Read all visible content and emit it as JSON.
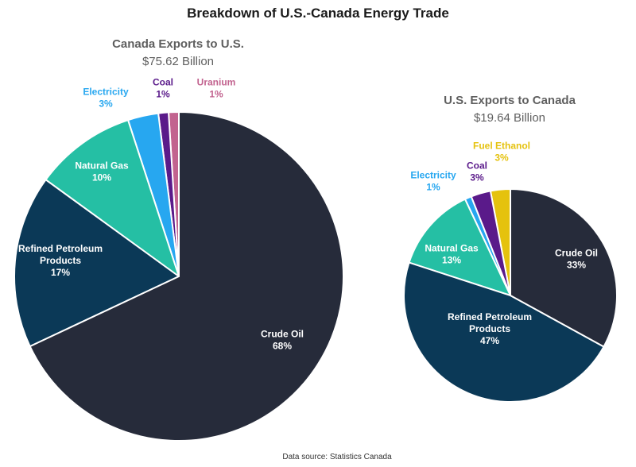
{
  "chart_data": [
    {
      "type": "pie",
      "title": "Breakdown of U.S.-Canada Energy Trade",
      "chart_title": "Canada Exports to U.S.",
      "subtitle": "$75.62 Billion",
      "slices": [
        {
          "name": "Crude Oil",
          "line1": "Crude Oil",
          "line2": "",
          "pct_label": "68%",
          "value": 68,
          "color": "#262b3a",
          "text_color": "#ffffff"
        },
        {
          "name": "Refined Petroleum Products",
          "line1": "Refined Petroleum",
          "line2": "Products",
          "pct_label": "17%",
          "value": 17,
          "color": "#0b3957",
          "text_color": "#ffffff"
        },
        {
          "name": "Natural Gas",
          "line1": "Natural Gas",
          "line2": "",
          "pct_label": "10%",
          "value": 10,
          "color": "#25bfa4",
          "text_color": "#ffffff"
        },
        {
          "name": "Electricity",
          "line1": "Electricity",
          "line2": "",
          "pct_label": "3%",
          "value": 3,
          "color": "#27a7f0",
          "text_color": "#27a7f0"
        },
        {
          "name": "Coal",
          "line1": "Coal",
          "line2": "",
          "pct_label": "1%",
          "value": 1,
          "color": "#5a1a8a",
          "text_color": "#5a1a8a"
        },
        {
          "name": "Uranium",
          "line1": "Uranium",
          "line2": "",
          "pct_label": "1%",
          "value": 1,
          "color": "#c2638f",
          "text_color": "#c2638f"
        }
      ]
    },
    {
      "type": "pie",
      "chart_title": "U.S. Exports to Canada",
      "subtitle": "$19.64 Billion",
      "slices": [
        {
          "name": "Crude Oil",
          "line1": "Crude Oil",
          "line2": "",
          "pct_label": "33%",
          "value": 33,
          "color": "#262b3a",
          "text_color": "#ffffff"
        },
        {
          "name": "Refined Petroleum Products",
          "line1": "Refined Petroleum",
          "line2": "Products",
          "pct_label": "47%",
          "value": 47,
          "color": "#0b3957",
          "text_color": "#ffffff"
        },
        {
          "name": "Natural Gas",
          "line1": "Natural Gas",
          "line2": "",
          "pct_label": "13%",
          "value": 13,
          "color": "#25bfa4",
          "text_color": "#ffffff"
        },
        {
          "name": "Electricity",
          "line1": "Electricity",
          "line2": "",
          "pct_label": "1%",
          "value": 1,
          "color": "#27a7f0",
          "text_color": "#27a7f0"
        },
        {
          "name": "Coal",
          "line1": "Coal",
          "line2": "",
          "pct_label": "3%",
          "value": 3,
          "color": "#5a1a8a",
          "text_color": "#5a1a8a"
        },
        {
          "name": "Fuel Ethanol",
          "line1": "Fuel Ethanol",
          "line2": "",
          "pct_label": "3%",
          "value": 3,
          "color": "#e5c20e",
          "text_color": "#e5c20e"
        }
      ]
    }
  ],
  "footer": {
    "source": "Data source: Statistics Canada"
  }
}
